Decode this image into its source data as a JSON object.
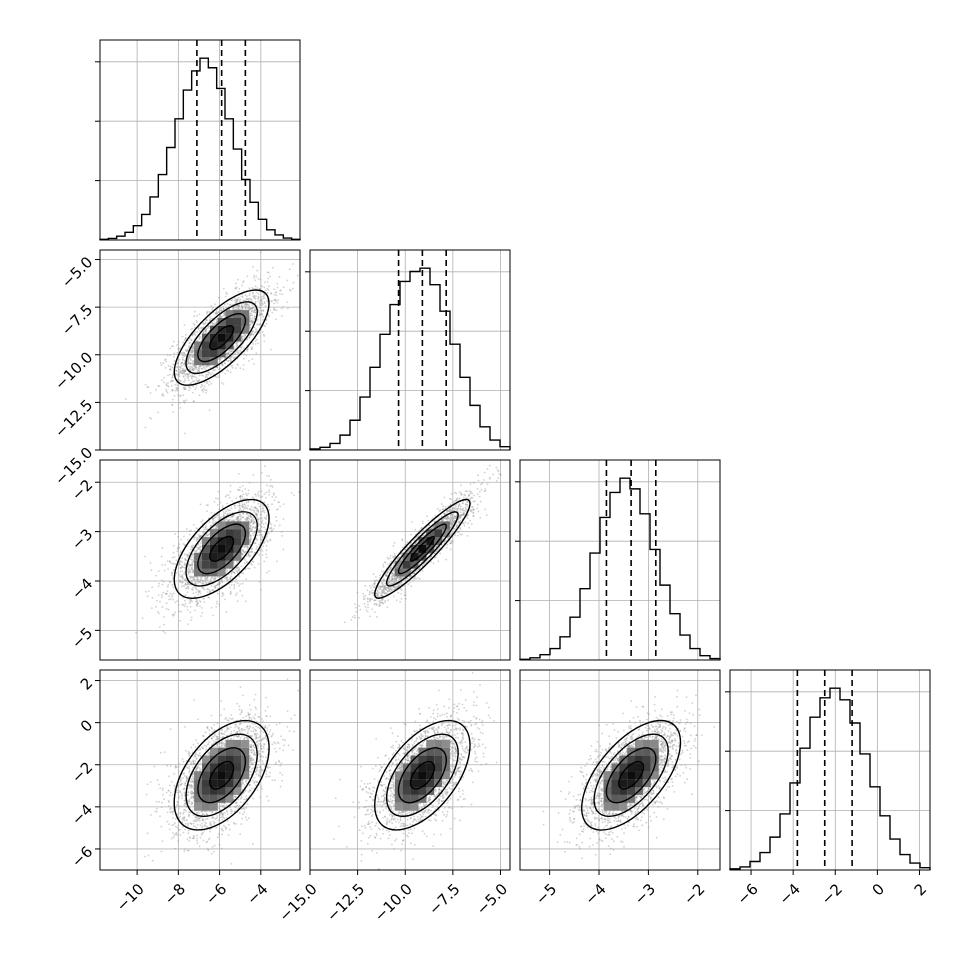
{
  "chart_data": {
    "type": "corner",
    "title": "",
    "parameters": [
      {
        "name": "",
        "range": [
          -11.8,
          -2.1
        ],
        "median": -5.9,
        "q16": -7.1,
        "q84": -4.75,
        "sigma": 1.15,
        "hist_counts": [
          0.2,
          0.5,
          1.2,
          2.4,
          4.5,
          8.0,
          13.5,
          20.5,
          29.0,
          38.0,
          47.0,
          53.0,
          57.0,
          54.0,
          47.5,
          38.0,
          28.5,
          19.0,
          11.8,
          6.5,
          3.2,
          1.6,
          0.6,
          0.2
        ],
        "ticks": [
          -10,
          -8,
          -6,
          -4
        ],
        "tick_labels": [
          "−10",
          "−8",
          "−6",
          "−4"
        ]
      },
      {
        "name": "",
        "range": [
          -15.0,
          -4.5
        ],
        "median": -9.1,
        "q16": -10.35,
        "q84": -7.85,
        "sigma": 1.25,
        "hist_counts": [
          0.3,
          0.8,
          2.0,
          4.5,
          9.0,
          16.0,
          25.0,
          35.0,
          44.0,
          51.0,
          54.0,
          55.0,
          50.0,
          42.0,
          32.0,
          22.0,
          13.5,
          7.0,
          3.0,
          1.0
        ],
        "ticks": [
          -15.0,
          -12.5,
          -10.0,
          -7.5,
          -5.0
        ],
        "tick_labels": [
          "−15.0",
          "−12.5",
          "−10.0",
          "−7.5",
          "−5.0"
        ]
      },
      {
        "name": "",
        "range": [
          -5.6,
          -1.55
        ],
        "median": -3.35,
        "q16": -3.85,
        "q84": -2.85,
        "sigma": 0.5,
        "hist_counts": [
          0.2,
          0.6,
          1.5,
          3.2,
          6.5,
          12.0,
          20.0,
          30.0,
          40.0,
          47.0,
          51.0,
          48.0,
          41.0,
          31.0,
          21.0,
          13.0,
          7.0,
          3.2,
          1.2,
          0.4
        ],
        "ticks": [
          -5,
          -4,
          -3,
          -2
        ],
        "tick_labels": [
          "−5",
          "−4",
          "−3",
          "−2"
        ]
      },
      {
        "name": "",
        "range": [
          -7.0,
          2.5
        ],
        "median": -2.5,
        "q16": -3.8,
        "q84": -1.2,
        "sigma": 1.3,
        "hist_counts": [
          0.3,
          0.8,
          2.2,
          4.5,
          8.5,
          14.5,
          22.5,
          31.5,
          39.5,
          44.5,
          47.0,
          44.0,
          38.0,
          30.0,
          21.5,
          14.0,
          8.0,
          4.0,
          1.8,
          0.6
        ],
        "ticks": [
          -6,
          -4,
          -2,
          0,
          2
        ],
        "tick_labels": [
          "−6",
          "−4",
          "−2",
          "0",
          "2"
        ]
      }
    ],
    "correlations": [
      [
        1.0,
        0.72,
        0.62,
        0.5
      ],
      [
        0.72,
        1.0,
        0.92,
        0.55
      ],
      [
        0.62,
        0.92,
        1.0,
        0.6
      ],
      [
        0.5,
        0.55,
        0.6,
        1.0
      ]
    ],
    "contour_levels_sigma": [
      0.5,
      1.0,
      1.5,
      2.0
    ],
    "points_per_panel": 2500,
    "grid": true,
    "histogram_lines": "dashed at 16th, 50th and 84th percentiles"
  },
  "colors": {
    "axes": "#000000",
    "grid": "#b0b0b0",
    "points": "#9a9a9a",
    "density": "#000000"
  }
}
